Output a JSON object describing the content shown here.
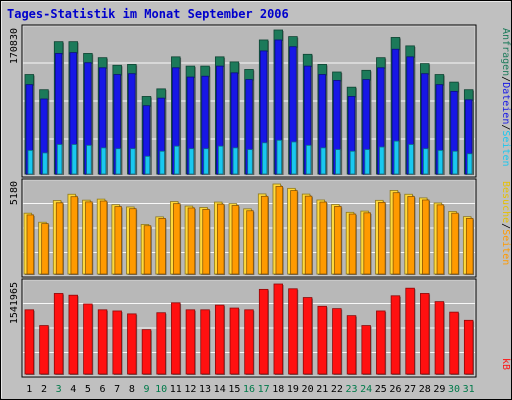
{
  "title": "Tages-Statistik im Monat September 2006",
  "colors": {
    "background": "#c0c0c0",
    "title": "#0000cc",
    "plot_bg": "#b8b8b8",
    "grid": "#ffffff",
    "anfragen": "#1c7a5a",
    "dateien": "#1717e6",
    "seiten": "#19c8f0",
    "besuche": "#ffd93a",
    "seiten_mid": "#ff9a00",
    "kb": "#ff1010",
    "day_weekday": "#000000",
    "day_weekend": "#007a4a"
  },
  "side_labels": {
    "top": {
      "anfragen": "Anfragen",
      "sep1": "/",
      "dateien": "Dateien",
      "sep2": "/",
      "seiten": "Seiten"
    },
    "mid": {
      "besuche": "Besuche",
      "sep": "/",
      "seiten": "Seiten"
    },
    "bottom": {
      "kb": "kB"
    }
  },
  "chart_data": [
    {
      "type": "bar",
      "ylabel": "170830",
      "ylim": [
        0,
        170830
      ],
      "categories": [
        "1",
        "2",
        "3",
        "4",
        "5",
        "6",
        "7",
        "8",
        "9",
        "10",
        "11",
        "12",
        "13",
        "14",
        "15",
        "16",
        "17",
        "18",
        "19",
        "20",
        "21",
        "22",
        "23",
        "24",
        "25",
        "26",
        "27",
        "28",
        "29",
        "30",
        "31"
      ],
      "series": [
        {
          "name": "Anfragen",
          "values": [
            118000,
            100000,
            157000,
            157000,
            143000,
            138000,
            129000,
            130000,
            92000,
            101000,
            139000,
            128000,
            128000,
            139000,
            133000,
            124000,
            159000,
            170830,
            163000,
            142000,
            130000,
            121000,
            103000,
            123000,
            138000,
            162000,
            152000,
            131000,
            118000,
            109000,
            100000
          ]
        },
        {
          "name": "Dateien",
          "values": [
            106000,
            89000,
            143000,
            144000,
            132000,
            126000,
            118000,
            119000,
            81000,
            90000,
            126000,
            115000,
            116000,
            128000,
            120000,
            112000,
            146000,
            159000,
            151000,
            128000,
            118000,
            111000,
            92000,
            112000,
            126000,
            148000,
            139000,
            119000,
            106000,
            98000,
            88000
          ]
        },
        {
          "name": "Seiten",
          "values": [
            28000,
            25000,
            35000,
            35000,
            34000,
            31000,
            30000,
            30000,
            21000,
            27000,
            33000,
            30000,
            30000,
            33000,
            31000,
            29000,
            37000,
            40000,
            38000,
            34000,
            31000,
            29000,
            27000,
            29000,
            32000,
            39000,
            35000,
            30000,
            28000,
            27000,
            24000
          ]
        }
      ],
      "x_highlight": [
        "3",
        "9",
        "10",
        "16",
        "17",
        "23",
        "24",
        "30",
        "31"
      ]
    },
    {
      "type": "bar",
      "ylabel": "5180",
      "ylim": [
        0,
        5180
      ],
      "categories": [
        "1",
        "2",
        "3",
        "4",
        "5",
        "6",
        "7",
        "8",
        "9",
        "10",
        "11",
        "12",
        "13",
        "14",
        "15",
        "16",
        "17",
        "18",
        "19",
        "20",
        "21",
        "22",
        "23",
        "24",
        "25",
        "26",
        "27",
        "28",
        "29",
        "30",
        "31"
      ],
      "series": [
        {
          "name": "Besuche",
          "values": [
            3500,
            2980,
            4230,
            4590,
            4250,
            4310,
            3990,
            3860,
            2850,
            3290,
            4170,
            3910,
            3830,
            4140,
            4050,
            3750,
            4610,
            5180,
            4930,
            4600,
            4260,
            4000,
            3550,
            3620,
            4240,
            4810,
            4590,
            4380,
            4090,
            3600,
            3300
          ]
        },
        {
          "name": "Seiten",
          "values": [
            3400,
            2900,
            4100,
            4450,
            4150,
            4200,
            3880,
            3760,
            2780,
            3200,
            4050,
            3800,
            3720,
            4020,
            3940,
            3640,
            4470,
            5040,
            4800,
            4480,
            4140,
            3890,
            3450,
            3520,
            4120,
            4680,
            4460,
            4260,
            3980,
            3500,
            3200
          ]
        }
      ]
    },
    {
      "type": "bar",
      "ylabel": "1541965",
      "ylim": [
        0,
        1541965
      ],
      "categories": [
        "1",
        "2",
        "3",
        "4",
        "5",
        "6",
        "7",
        "8",
        "9",
        "10",
        "11",
        "12",
        "13",
        "14",
        "15",
        "16",
        "17",
        "18",
        "19",
        "20",
        "21",
        "22",
        "23",
        "24",
        "25",
        "26",
        "27",
        "28",
        "29",
        "30",
        "31"
      ],
      "series": [
        {
          "name": "kB",
          "values": [
            1100000,
            830000,
            1380000,
            1350000,
            1200000,
            1100000,
            1080000,
            1030000,
            760000,
            1050000,
            1220000,
            1100000,
            1100000,
            1180000,
            1130000,
            1100000,
            1450000,
            1541965,
            1460000,
            1310000,
            1160000,
            1120000,
            1000000,
            830000,
            1080000,
            1340000,
            1470000,
            1380000,
            1240000,
            1060000,
            920000
          ]
        }
      ]
    }
  ]
}
